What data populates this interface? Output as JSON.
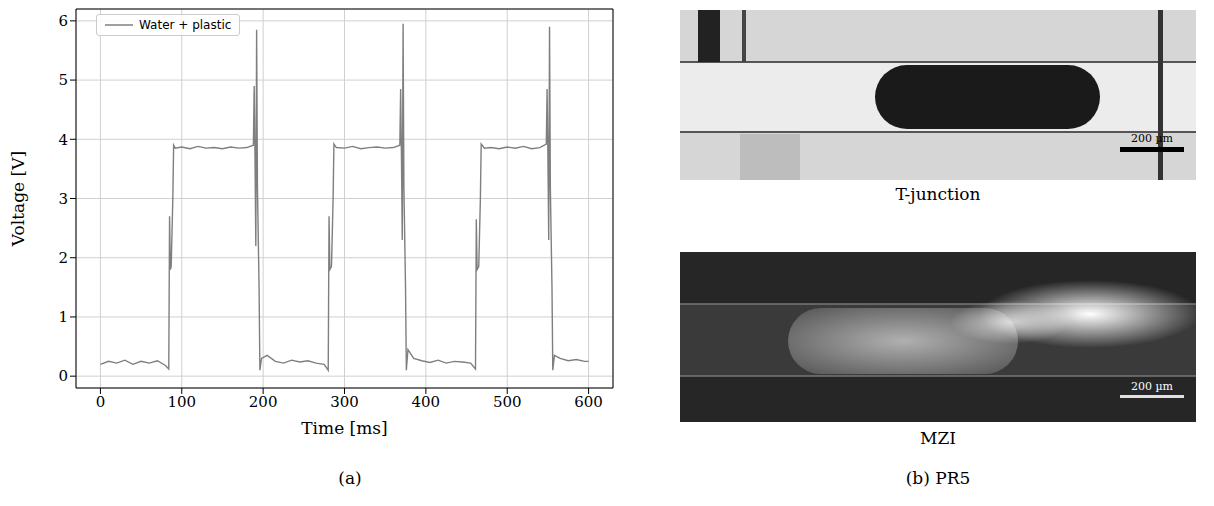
{
  "chart_data": {
    "type": "line",
    "x_label": "Time [ms]",
    "y_label": "Voltage [V]",
    "x": [
      0,
      10,
      20,
      30,
      40,
      50,
      60,
      70,
      80,
      84,
      85,
      86,
      87,
      89,
      90,
      92,
      100,
      110,
      120,
      130,
      140,
      150,
      160,
      170,
      180,
      188,
      189,
      190,
      191,
      192,
      193,
      195,
      196,
      198,
      205,
      215,
      225,
      235,
      245,
      255,
      265,
      275,
      280,
      281,
      282,
      284,
      286,
      287,
      290,
      300,
      310,
      320,
      330,
      340,
      350,
      360,
      368,
      369,
      370,
      371,
      372,
      373,
      375,
      376,
      378,
      385,
      395,
      405,
      415,
      425,
      435,
      445,
      455,
      461,
      462,
      463,
      465,
      467,
      468,
      472,
      480,
      490,
      500,
      510,
      520,
      530,
      540,
      548,
      549,
      550,
      551,
      552,
      553,
      555,
      556,
      558,
      565,
      575,
      585,
      595,
      600
    ],
    "series": [
      {
        "name": "Water + plastic",
        "color": "#7f7f7f",
        "values": [
          0.2,
          0.25,
          0.22,
          0.27,
          0.2,
          0.25,
          0.22,
          0.26,
          0.18,
          0.12,
          2.7,
          1.8,
          1.85,
          3.0,
          3.9,
          3.85,
          3.87,
          3.84,
          3.88,
          3.85,
          3.86,
          3.84,
          3.87,
          3.85,
          3.86,
          3.9,
          4.9,
          3.7,
          2.2,
          5.85,
          3.2,
          1.5,
          0.1,
          0.3,
          0.35,
          0.25,
          0.22,
          0.27,
          0.24,
          0.26,
          0.22,
          0.2,
          0.1,
          2.7,
          1.8,
          1.85,
          3.0,
          3.92,
          3.86,
          3.85,
          3.88,
          3.84,
          3.86,
          3.87,
          3.85,
          3.86,
          3.9,
          4.85,
          3.7,
          2.3,
          5.95,
          3.2,
          1.5,
          0.1,
          0.45,
          0.3,
          0.26,
          0.23,
          0.27,
          0.22,
          0.25,
          0.24,
          0.22,
          0.12,
          2.65,
          1.8,
          1.85,
          3.0,
          3.92,
          3.85,
          3.86,
          3.84,
          3.87,
          3.85,
          3.88,
          3.84,
          3.86,
          3.92,
          4.85,
          3.7,
          2.3,
          5.9,
          3.2,
          1.5,
          0.1,
          0.35,
          0.3,
          0.26,
          0.28,
          0.25,
          0.25
        ]
      }
    ],
    "xlim": [
      -30,
      630
    ],
    "xticks": [
      0,
      100,
      200,
      300,
      400,
      500,
      600
    ],
    "ylim": [
      -0.2,
      6.2
    ],
    "yticks": [
      0,
      1,
      2,
      3,
      4,
      5,
      6
    ],
    "grid": true,
    "legend": "upper left"
  },
  "panels": {
    "a": {
      "label": "(a)"
    },
    "b": {
      "label": "(b) PR5",
      "images": [
        {
          "caption": "T-junction",
          "scale_bar": "200 µm"
        },
        {
          "caption": "MZI",
          "scale_bar": "200 µm"
        }
      ]
    }
  }
}
